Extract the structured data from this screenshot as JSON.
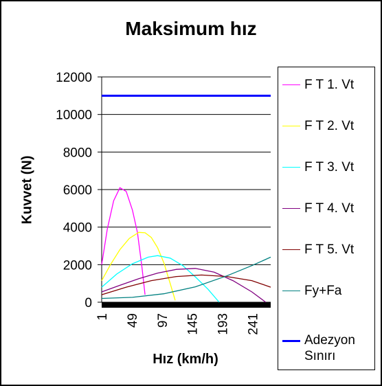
{
  "chart_data": {
    "type": "line",
    "title": "Maksimum hız",
    "xlabel": "Hız (km/h)",
    "ylabel": "Kuvvet (N)",
    "ylim": [
      0,
      12000
    ],
    "xlim": [
      1,
      270
    ],
    "y_ticks": [
      "0",
      "2000",
      "4000",
      "6000",
      "8000",
      "10000",
      "12000"
    ],
    "x_ticks": [
      "1",
      "49",
      "97",
      "145",
      "193",
      "241"
    ],
    "x_tick_values": [
      1,
      49,
      97,
      145,
      193,
      241
    ],
    "y_tick_values": [
      0,
      2000,
      4000,
      6000,
      8000,
      10000,
      12000
    ],
    "grid": true,
    "legend_position": "right",
    "series": [
      {
        "name": "F T 1.  Vt",
        "color": "#FF00FF",
        "x": [
          1,
          10,
          20,
          30,
          40,
          50,
          58,
          65,
          70
        ],
        "y": [
          2000,
          3900,
          5400,
          6100,
          5900,
          4900,
          3700,
          1900,
          400
        ]
      },
      {
        "name": "F T 2.  Vt",
        "color": "#FFFF00",
        "x": [
          1,
          15,
          30,
          45,
          60,
          70,
          80,
          90,
          100,
          110,
          118
        ],
        "y": [
          1150,
          2000,
          2800,
          3400,
          3720,
          3700,
          3450,
          2900,
          2100,
          1000,
          100
        ]
      },
      {
        "name": "F T 3.  Vt",
        "color": "#00FFFF",
        "x": [
          1,
          25,
          50,
          75,
          90,
          110,
          130,
          150,
          170,
          188
        ],
        "y": [
          800,
          1500,
          2050,
          2400,
          2480,
          2350,
          1950,
          1350,
          700,
          0
        ]
      },
      {
        "name": "F T 4.  Vt",
        "color": "#800080",
        "x": [
          1,
          30,
          60,
          90,
          120,
          150,
          180,
          210,
          240,
          262
        ],
        "y": [
          550,
          900,
          1250,
          1550,
          1750,
          1800,
          1600,
          1150,
          550,
          0
        ]
      },
      {
        "name": "F T 5.  Vt",
        "color": "#800000",
        "x": [
          1,
          40,
          80,
          120,
          160,
          200,
          240,
          270
        ],
        "y": [
          400,
          800,
          1150,
          1370,
          1450,
          1370,
          1150,
          800
        ]
      },
      {
        "name": "Fy+Fa",
        "color": "#008080",
        "x": [
          1,
          50,
          100,
          150,
          200,
          240,
          270
        ],
        "y": [
          200,
          260,
          450,
          820,
          1400,
          1950,
          2400
        ]
      }
    ],
    "reference_line": {
      "name": "Adezyon Sınırı",
      "color": "#0000FF",
      "y": 11000
    }
  }
}
